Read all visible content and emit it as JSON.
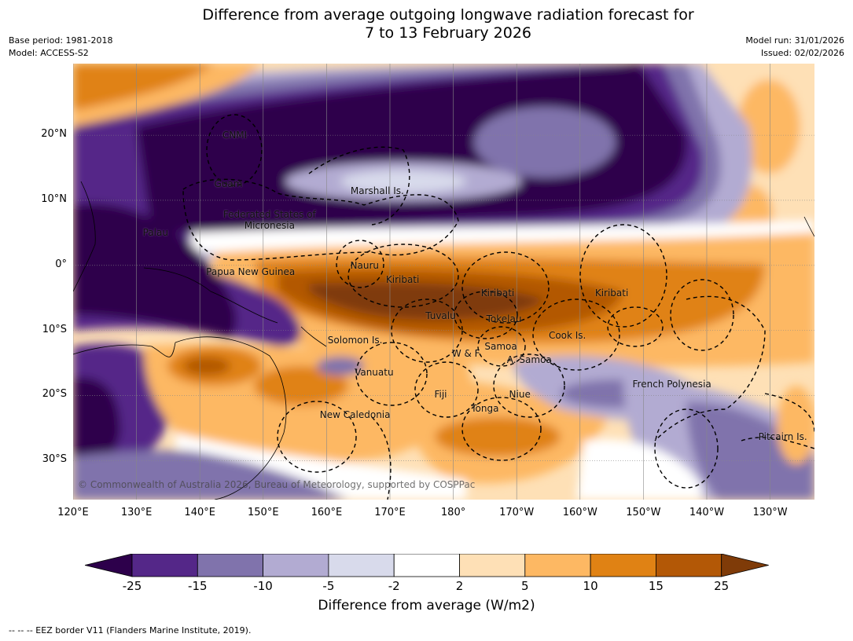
{
  "title": {
    "line1": "Difference from average outgoing longwave radiation forecast for",
    "line2": "7 to 13 February 2026"
  },
  "meta": {
    "base_period": "Base period: 1981-2018",
    "model": "Model: ACCESS-S2",
    "model_run": "Model run: 31/01/2026",
    "issued": "Issued: 02/02/2026"
  },
  "map": {
    "lat_labels": [
      "20°N",
      "10°N",
      "0°",
      "10°S",
      "20°S",
      "30°S"
    ],
    "lat_values": [
      20,
      10,
      0,
      -10,
      -20,
      -30
    ],
    "lon_labels": [
      "120°E",
      "130°E",
      "140°E",
      "150°E",
      "160°E",
      "170°E",
      "180°",
      "170°W",
      "160°W",
      "150°W",
      "140°W",
      "130°W"
    ],
    "lon_values": [
      120,
      130,
      140,
      150,
      160,
      170,
      180,
      190,
      200,
      210,
      220,
      230
    ],
    "lat_range": [
      -36,
      31
    ],
    "lon_range": [
      120,
      237
    ],
    "places": [
      {
        "label": "CNMI",
        "lon": 145.5,
        "lat": 20.0
      },
      {
        "label": "Guam",
        "lon": 144.5,
        "lat": 12.5
      },
      {
        "label": "Marshall Is.",
        "lon": 168.0,
        "lat": 11.5
      },
      {
        "label": "Federated States of Micronesia",
        "lon": 151.0,
        "lat": 7.0
      },
      {
        "label": "Palau",
        "lon": 133.0,
        "lat": 5.0
      },
      {
        "label": "Papua New Guinea",
        "lon": 148.0,
        "lat": -1.0
      },
      {
        "label": "Nauru",
        "lon": 166.0,
        "lat": 0.0
      },
      {
        "label": "Kiribati",
        "lon": 172.0,
        "lat": -2.2
      },
      {
        "label": "Kiribati",
        "lon": 187.0,
        "lat": -4.2
      },
      {
        "label": "Kiribati",
        "lon": 205.0,
        "lat": -4.2
      },
      {
        "label": "Tuvalu",
        "lon": 178.0,
        "lat": -7.8
      },
      {
        "label": "Tokelau",
        "lon": 188.0,
        "lat": -8.2
      },
      {
        "label": "Cook Is.",
        "lon": 198.0,
        "lat": -10.8
      },
      {
        "label": "Solomon Is.",
        "lon": 164.5,
        "lat": -11.5
      },
      {
        "label": "Samoa",
        "lon": 187.5,
        "lat": -12.5
      },
      {
        "label": "W & F",
        "lon": 182.0,
        "lat": -13.5
      },
      {
        "label": "A. Samoa",
        "lon": 192.0,
        "lat": -14.5
      },
      {
        "label": "Vanuatu",
        "lon": 167.5,
        "lat": -16.5
      },
      {
        "label": "Fiji",
        "lon": 178.0,
        "lat": -19.8
      },
      {
        "label": "Niue",
        "lon": 190.5,
        "lat": -19.8
      },
      {
        "label": "Tonga",
        "lon": 185.0,
        "lat": -22.0
      },
      {
        "label": "New Caledonia",
        "lon": 164.5,
        "lat": -23.0
      },
      {
        "label": "French Polynesia",
        "lon": 214.5,
        "lat": -18.2
      },
      {
        "label": "Pitcairn Is.",
        "lon": 232.0,
        "lat": -26.3
      }
    ]
  },
  "copyright": "© Commonwealth of Australia 2026, Bureau of Meteorology, supported by COSPPac",
  "colorbar": {
    "ticks": [
      "-25",
      "-15",
      "-10",
      "-5",
      "-2",
      "2",
      "5",
      "10",
      "15",
      "25"
    ],
    "colors": [
      "#2d004b",
      "#542788",
      "#8073ac",
      "#b2abd2",
      "#d8daeb",
      "#ffffff",
      "#fee0b6",
      "#fdb863",
      "#e08214",
      "#b35806",
      "#7f3b08"
    ],
    "label": "Difference from average (W/m2)"
  },
  "footnote": "--  --  -- EEZ border V11 (Flanders Marine Institute, 2019)."
}
